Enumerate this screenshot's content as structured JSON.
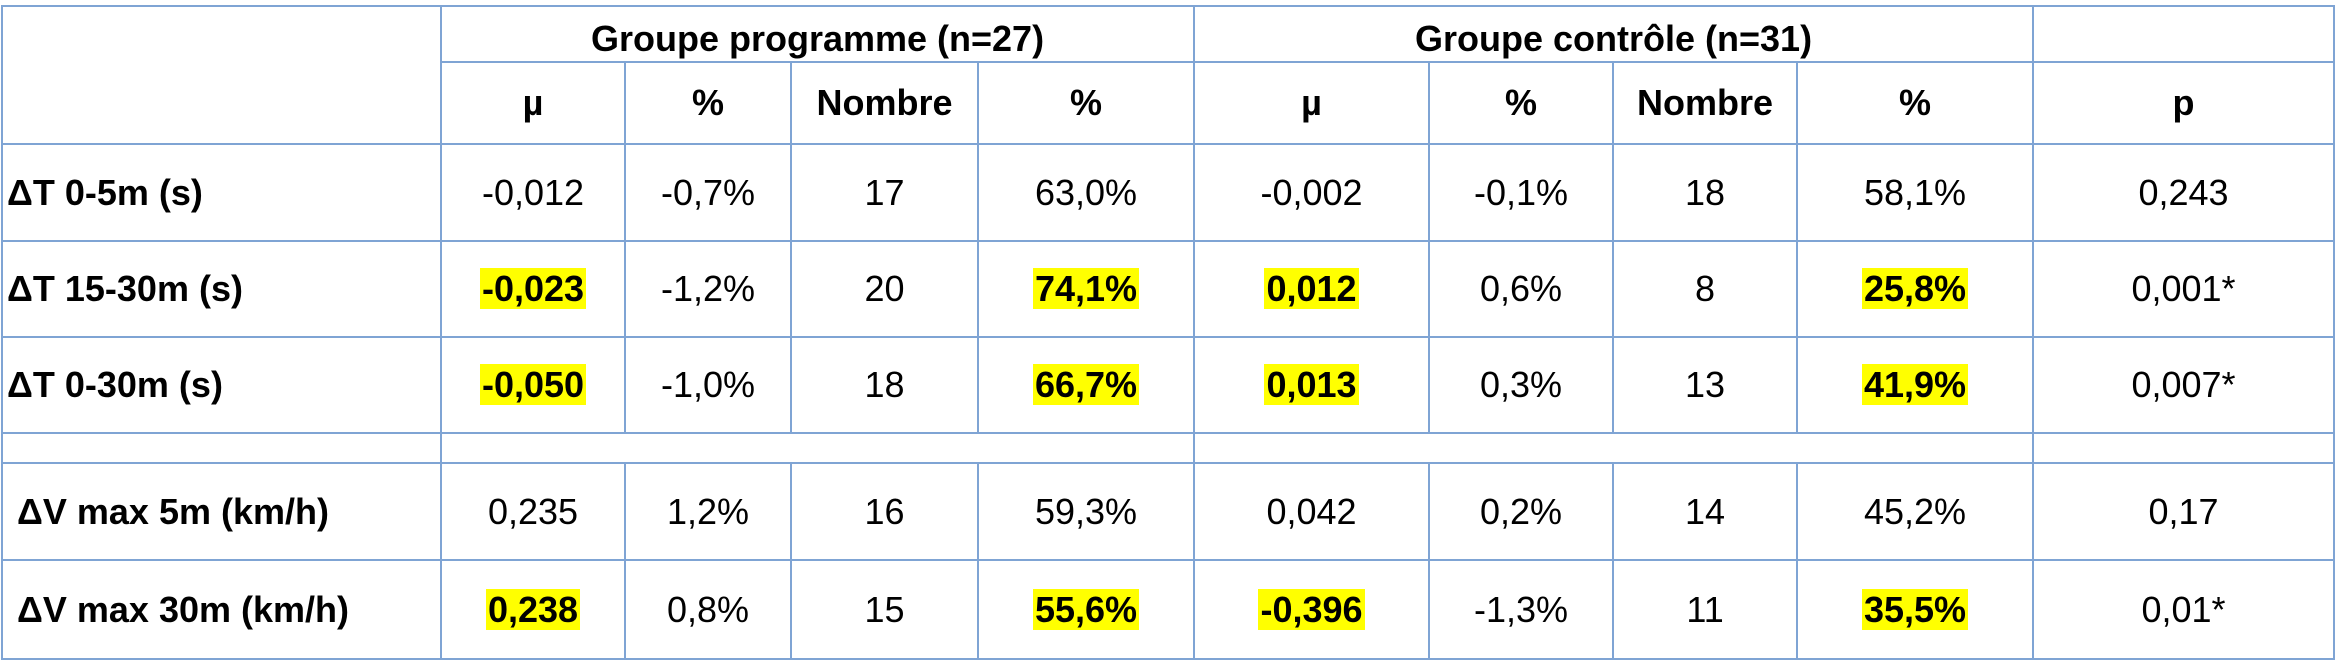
{
  "header": {
    "group_program": "Groupe programme (n=27)",
    "group_control": "Groupe contrôle (n=31)",
    "columns": [
      "µ",
      "%",
      "Nombre",
      "%",
      "µ",
      "%",
      "Nombre",
      "%",
      "p"
    ]
  },
  "rows": [
    {
      "label": "ΔT 0-5m (s)",
      "prog_mu": "-0,012",
      "prog_pct": "-0,7%",
      "prog_n": "17",
      "prog_npct": "63,0%",
      "ctrl_mu": "-0,002",
      "ctrl_pct": "-0,1%",
      "ctrl_n": "18",
      "ctrl_npct": "58,1%",
      "p": "0,243"
    },
    {
      "label": "ΔT 15-30m (s)",
      "prog_mu": "-0,023",
      "prog_pct": "-1,2%",
      "prog_n": "20",
      "prog_npct": "74,1%",
      "ctrl_mu": "0,012",
      "ctrl_pct": "0,6%",
      "ctrl_n": "8",
      "ctrl_npct": "25,8%",
      "p": "0,001*"
    },
    {
      "label": "ΔT 0-30m (s)",
      "prog_mu": "-0,050",
      "prog_pct": "-1,0%",
      "prog_n": "18",
      "prog_npct": "66,7%",
      "ctrl_mu": "0,013",
      "ctrl_pct": "0,3%",
      "ctrl_n": "13",
      "ctrl_npct": "41,9%",
      "p": "0,007*"
    },
    {
      "label": "ΔV max 5m (km/h)",
      "prog_mu": "0,235",
      "prog_pct": "1,2%",
      "prog_n": "16",
      "prog_npct": "59,3%",
      "ctrl_mu": "0,042",
      "ctrl_pct": "0,2%",
      "ctrl_n": "14",
      "ctrl_npct": "45,2%",
      "p": "0,17"
    },
    {
      "label": "ΔV max 30m (km/h)",
      "prog_mu": "0,238",
      "prog_pct": "0,8%",
      "prog_n": "15",
      "prog_npct": "55,6%",
      "ctrl_mu": "-0,396",
      "ctrl_pct": "-1,3%",
      "ctrl_n": "11",
      "ctrl_npct": "35,5%",
      "p": "0,01*"
    }
  ],
  "highlight_color": "#ffff00",
  "border_color": "#7fa4d4"
}
